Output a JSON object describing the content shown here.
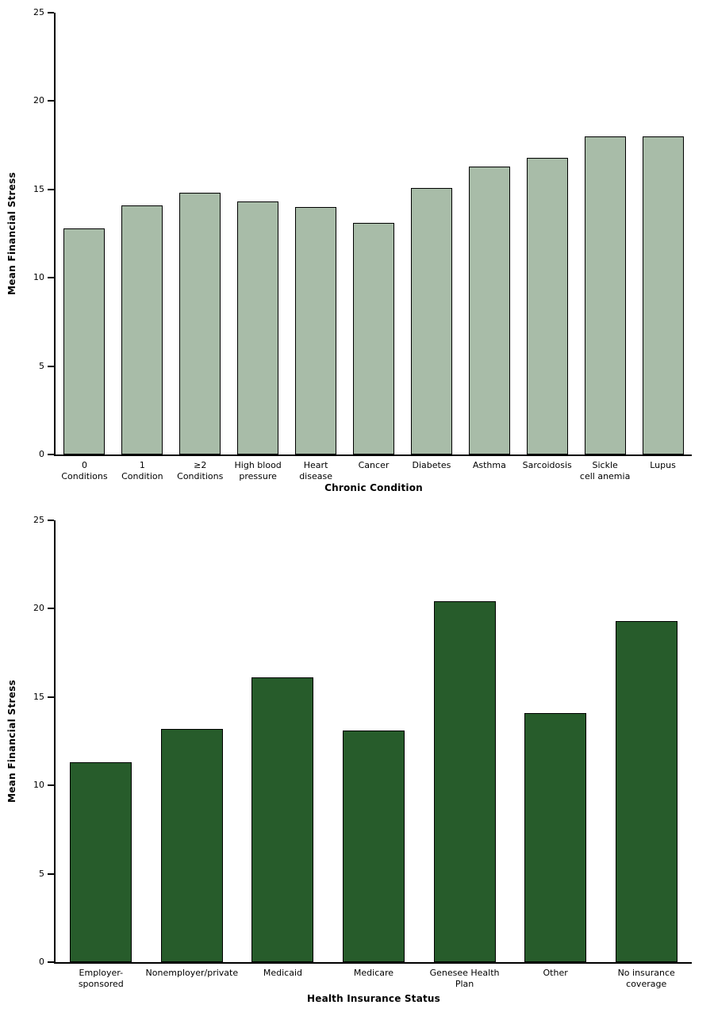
{
  "page": {
    "background": "#ffffff"
  },
  "chart_data": [
    {
      "type": "bar",
      "title": "",
      "xlabel": "Chronic Condition",
      "ylabel": "Mean Financial Stress",
      "ylim": [
        0,
        25
      ],
      "yticks": [
        0,
        5,
        10,
        15,
        20,
        25
      ],
      "grid": false,
      "legend": null,
      "categories": [
        "0\nConditions",
        "1\nCondition",
        "≥2\nConditions",
        "High blood\npressure",
        "Heart\ndisease",
        "Cancer",
        "Diabetes",
        "Asthma",
        "Sarcoidosis",
        "Sickle\ncell anemia",
        "Lupus"
      ],
      "values": [
        12.8,
        14.1,
        14.8,
        14.3,
        14.0,
        13.1,
        15.1,
        16.3,
        16.8,
        18.0,
        18.0
      ],
      "bar_color": "#a8bca8",
      "bar_border_color": "#000000",
      "axis_color": "#000000"
    },
    {
      "type": "bar",
      "title": "",
      "xlabel": "Health Insurance Status",
      "ylabel": "Mean Financial Stress",
      "ylim": [
        0,
        25
      ],
      "yticks": [
        0,
        5,
        10,
        15,
        20,
        25
      ],
      "grid": false,
      "legend": null,
      "categories": [
        "Employer-\nsponsored",
        "Nonemployer/private",
        "Medicaid",
        "Medicare",
        "Genesee Health\nPlan",
        "Other",
        "No insurance\ncoverage"
      ],
      "values": [
        11.3,
        13.2,
        16.1,
        13.1,
        20.4,
        14.1,
        19.3
      ],
      "bar_color": "#275c2b",
      "bar_border_color": "#000000",
      "axis_color": "#000000"
    }
  ]
}
